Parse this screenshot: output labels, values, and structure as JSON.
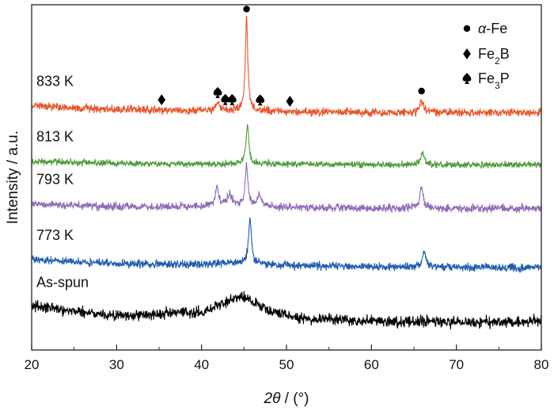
{
  "chart_data": {
    "type": "line",
    "title": "",
    "xlabel_symbol": "2θ",
    "xlabel_unit": " / (°)",
    "ylabel": "Intensity / a.u.",
    "xlim": [
      20,
      80
    ],
    "xticks": [
      20,
      30,
      40,
      50,
      60,
      70,
      80
    ],
    "yticks_shown": false,
    "grid": false,
    "legend": {
      "position": "top-right",
      "entries": [
        {
          "symbol": "circle",
          "label_math": "α",
          "label_rest": "-Fe"
        },
        {
          "symbol": "diamond",
          "label_base": "Fe",
          "label_sub": "2",
          "label_tail": "B"
        },
        {
          "symbol": "spade",
          "label_base": "Fe",
          "label_sub": "3",
          "label_tail": "P"
        }
      ]
    },
    "series": [
      {
        "name": "As-spun",
        "color": "#000000",
        "offset": 0,
        "noise": 7,
        "baseline": [
          [
            20,
            24
          ],
          [
            30,
            11
          ],
          [
            40,
            16
          ],
          [
            42,
            24
          ],
          [
            44,
            34
          ],
          [
            45,
            35
          ],
          [
            46,
            30
          ],
          [
            48,
            17
          ],
          [
            52,
            8
          ],
          [
            60,
            5
          ],
          [
            70,
            3
          ],
          [
            80,
            4
          ]
        ],
        "peaks": []
      },
      {
        "name": "773 K",
        "color": "#1f5bb0",
        "offset": 68,
        "noise": 5,
        "baseline": [
          [
            20,
            14
          ],
          [
            30,
            9
          ],
          [
            40,
            8
          ],
          [
            44,
            10
          ],
          [
            50,
            7
          ],
          [
            60,
            5
          ],
          [
            80,
            4
          ]
        ],
        "peaks": [
          {
            "x": 45.7,
            "h": 58,
            "w": 0.2
          },
          {
            "x": 66.2,
            "h": 20,
            "w": 0.25
          }
        ]
      },
      {
        "name": "793 K",
        "color": "#8e6bb8",
        "offset": 142,
        "noise": 5,
        "baseline": [
          [
            20,
            10
          ],
          [
            30,
            7
          ],
          [
            40,
            7
          ],
          [
            44,
            9
          ],
          [
            50,
            6
          ],
          [
            60,
            5
          ],
          [
            80,
            5
          ]
        ],
        "peaks": [
          {
            "x": 41.8,
            "h": 22,
            "w": 0.25
          },
          {
            "x": 43.3,
            "h": 14,
            "w": 0.3
          },
          {
            "x": 45.3,
            "h": 50,
            "w": 0.2
          },
          {
            "x": 46.8,
            "h": 13,
            "w": 0.3
          },
          {
            "x": 65.9,
            "h": 26,
            "w": 0.25
          }
        ]
      },
      {
        "name": "813 K",
        "color": "#4e9a3a",
        "offset": 198,
        "noise": 4,
        "baseline": [
          [
            20,
            8
          ],
          [
            30,
            6
          ],
          [
            40,
            5
          ],
          [
            50,
            5
          ],
          [
            60,
            4
          ],
          [
            80,
            4
          ]
        ],
        "peaks": [
          {
            "x": 45.4,
            "h": 50,
            "w": 0.2
          },
          {
            "x": 66.0,
            "h": 15,
            "w": 0.25
          }
        ]
      },
      {
        "name": "833 K",
        "color": "#e8542a",
        "offset": 264,
        "noise": 5,
        "baseline": [
          [
            20,
            13
          ],
          [
            24,
            10
          ],
          [
            30,
            8
          ],
          [
            40,
            6
          ],
          [
            50,
            5
          ],
          [
            60,
            4
          ],
          [
            80,
            4
          ]
        ],
        "peaks": [
          {
            "x": 41.9,
            "h": 10,
            "w": 0.3
          },
          {
            "x": 45.3,
            "h": 116,
            "w": 0.18
          },
          {
            "x": 65.9,
            "h": 14,
            "w": 0.25
          }
        ]
      }
    ],
    "peak_markers": [
      {
        "series": "833 K",
        "x": 35.3,
        "symbol": "diamond"
      },
      {
        "series": "833 K",
        "x": 41.9,
        "symbol": "spade"
      },
      {
        "series": "833 K",
        "x": 42.8,
        "symbol": "spade"
      },
      {
        "series": "833 K",
        "x": 43.6,
        "symbol": "spade"
      },
      {
        "series": "833 K",
        "x": 45.3,
        "symbol": "circle"
      },
      {
        "series": "833 K",
        "x": 46.9,
        "symbol": "spade"
      },
      {
        "series": "833 K",
        "x": 50.4,
        "symbol": "diamond"
      },
      {
        "series": "833 K",
        "x": 65.9,
        "symbol": "circle"
      }
    ]
  }
}
